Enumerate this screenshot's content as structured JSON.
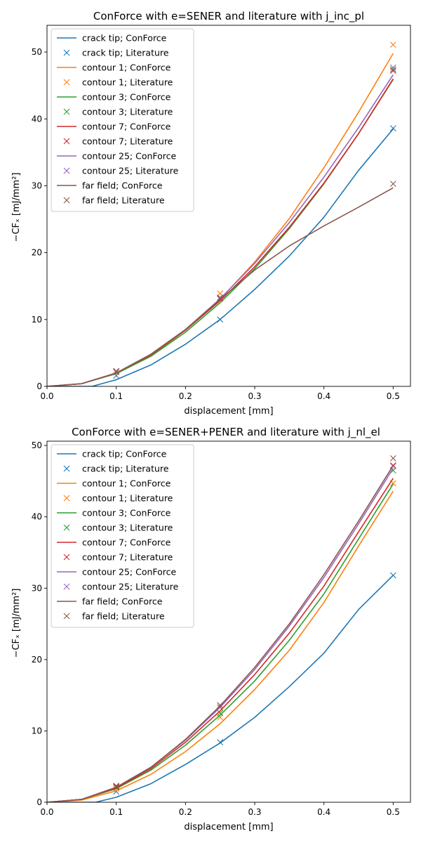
{
  "chart_data": [
    {
      "type": "line",
      "title": "ConForce with e=SENER and literature with j_inc_pl",
      "xlabel": "displacement [mm]",
      "ylabel": "−CFₓ [mJ/mm²]",
      "xlim": [
        0.0,
        0.525
      ],
      "ylim": [
        0,
        54
      ],
      "xticks": [
        "0.0",
        "0.1",
        "0.2",
        "0.3",
        "0.4",
        "0.5"
      ],
      "xtick_values": [
        0.0,
        0.1,
        0.2,
        0.3,
        0.4,
        0.5
      ],
      "yticks": [
        "0",
        "10",
        "20",
        "30",
        "40",
        "50"
      ],
      "ytick_values": [
        0,
        10,
        20,
        30,
        40,
        50
      ],
      "grid": false,
      "legend_position": "top-left",
      "series": [
        {
          "name": "crack tip; ConForce",
          "kind": "line",
          "color": "#1f77b4",
          "x": [
            0.0,
            0.065,
            0.1,
            0.15,
            0.2,
            0.25,
            0.3,
            0.35,
            0.4,
            0.45,
            0.5
          ],
          "y": [
            0.0,
            0.0,
            1.0,
            3.2,
            6.3,
            10.0,
            14.5,
            19.5,
            25.3,
            32.3,
            38.5
          ]
        },
        {
          "name": "crack tip; Literature",
          "kind": "marker",
          "color": "#1f77b4",
          "x": [
            0.1,
            0.25,
            0.5
          ],
          "y": [
            1.6,
            10.0,
            38.6
          ]
        },
        {
          "name": "contour 1; ConForce",
          "kind": "line",
          "color": "#ff7f0e",
          "x": [
            0.0,
            0.05,
            0.1,
            0.15,
            0.2,
            0.25,
            0.3,
            0.35,
            0.4,
            0.45,
            0.5
          ],
          "y": [
            0.0,
            0.4,
            1.9,
            4.6,
            8.4,
            13.0,
            18.6,
            25.1,
            32.7,
            41.0,
            49.8
          ]
        },
        {
          "name": "contour 1; Literature",
          "kind": "marker",
          "color": "#ff7f0e",
          "x": [
            0.1,
            0.25,
            0.5
          ],
          "y": [
            2.1,
            13.9,
            51.1
          ]
        },
        {
          "name": "contour 3; ConForce",
          "kind": "line",
          "color": "#2ca02c",
          "x": [
            0.0,
            0.05,
            0.1,
            0.15,
            0.2,
            0.25,
            0.3,
            0.35,
            0.4,
            0.45,
            0.5
          ],
          "y": [
            0.0,
            0.4,
            1.9,
            4.5,
            8.1,
            12.5,
            17.6,
            23.6,
            30.3,
            37.8,
            45.9
          ]
        },
        {
          "name": "contour 3; Literature",
          "kind": "marker",
          "color": "#2ca02c",
          "x": [
            0.1,
            0.25,
            0.5
          ],
          "y": [
            2.2,
            13.2,
            47.4
          ]
        },
        {
          "name": "contour 7; ConForce",
          "kind": "line",
          "color": "#d62728",
          "x": [
            0.0,
            0.05,
            0.1,
            0.15,
            0.2,
            0.25,
            0.3,
            0.35,
            0.4,
            0.45,
            0.5
          ],
          "y": [
            0.0,
            0.4,
            2.0,
            4.7,
            8.4,
            12.8,
            17.9,
            23.8,
            30.4,
            37.8,
            46.0
          ]
        },
        {
          "name": "contour 7; Literature",
          "kind": "marker",
          "color": "#d62728",
          "x": [
            0.1,
            0.25,
            0.5
          ],
          "y": [
            2.2,
            13.1,
            47.2
          ]
        },
        {
          "name": "contour 25; ConForce",
          "kind": "line",
          "color": "#9467bd",
          "x": [
            0.0,
            0.05,
            0.1,
            0.15,
            0.2,
            0.25,
            0.3,
            0.35,
            0.4,
            0.45,
            0.5
          ],
          "y": [
            0.0,
            0.4,
            2.0,
            4.8,
            8.5,
            13.1,
            18.4,
            24.5,
            31.3,
            38.7,
            46.6
          ]
        },
        {
          "name": "contour 25; Literature",
          "kind": "marker",
          "color": "#9467bd",
          "x": [
            0.1,
            0.25,
            0.5
          ],
          "y": [
            2.2,
            13.3,
            47.7
          ]
        },
        {
          "name": "far field; ConForce",
          "kind": "line",
          "color": "#8c564b",
          "x": [
            0.0,
            0.05,
            0.1,
            0.15,
            0.2,
            0.25,
            0.3,
            0.35,
            0.4,
            0.45,
            0.5
          ],
          "y": [
            0.0,
            0.4,
            2.0,
            4.8,
            8.5,
            13.0,
            17.4,
            21.0,
            24.0,
            26.8,
            29.7
          ]
        },
        {
          "name": "far field; Literature",
          "kind": "marker",
          "color": "#8c564b",
          "x": [
            0.1,
            0.25,
            0.5
          ],
          "y": [
            2.3,
            13.2,
            30.3
          ]
        }
      ]
    },
    {
      "type": "line",
      "title": "ConForce with e=SENER+PENER and literature with j_nl_el",
      "xlabel": "displacement [mm]",
      "ylabel": "−CFₓ [mJ/mm²]",
      "xlim": [
        0.0,
        0.525
      ],
      "ylim": [
        0,
        50.6
      ],
      "xticks": [
        "0.0",
        "0.1",
        "0.2",
        "0.3",
        "0.4",
        "0.5"
      ],
      "xtick_values": [
        0.0,
        0.1,
        0.2,
        0.3,
        0.4,
        0.5
      ],
      "yticks": [
        "0",
        "10",
        "20",
        "30",
        "40",
        "50"
      ],
      "ytick_values": [
        0,
        10,
        20,
        30,
        40,
        50
      ],
      "grid": false,
      "legend_position": "top-left",
      "series": [
        {
          "name": "crack tip; ConForce",
          "kind": "line",
          "color": "#1f77b4",
          "x": [
            0.0,
            0.07,
            0.1,
            0.15,
            0.2,
            0.25,
            0.3,
            0.35,
            0.4,
            0.45,
            0.5
          ],
          "y": [
            0.0,
            0.0,
            0.7,
            2.6,
            5.3,
            8.3,
            11.9,
            16.2,
            20.9,
            27.0,
            31.8
          ]
        },
        {
          "name": "crack tip; Literature",
          "kind": "marker",
          "color": "#1f77b4",
          "x": [
            0.1,
            0.25,
            0.5
          ],
          "y": [
            1.5,
            8.4,
            31.8
          ]
        },
        {
          "name": "contour 1; ConForce",
          "kind": "line",
          "color": "#ff7f0e",
          "x": [
            0.0,
            0.05,
            0.1,
            0.15,
            0.2,
            0.25,
            0.3,
            0.35,
            0.4,
            0.45,
            0.5
          ],
          "y": [
            0.0,
            0.3,
            1.6,
            3.9,
            7.1,
            11.0,
            15.8,
            21.3,
            28.0,
            35.9,
            43.6
          ]
        },
        {
          "name": "contour 1; Literature",
          "kind": "marker",
          "color": "#ff7f0e",
          "x": [
            0.1,
            0.25,
            0.5
          ],
          "y": [
            1.9,
            11.9,
            44.7
          ]
        },
        {
          "name": "contour 3; ConForce",
          "kind": "line",
          "color": "#2ca02c",
          "x": [
            0.0,
            0.05,
            0.1,
            0.15,
            0.2,
            0.25,
            0.3,
            0.35,
            0.4,
            0.45,
            0.5
          ],
          "y": [
            0.0,
            0.4,
            1.9,
            4.5,
            8.0,
            12.2,
            17.0,
            22.7,
            29.2,
            36.9,
            44.6
          ]
        },
        {
          "name": "contour 3; Literature",
          "kind": "marker",
          "color": "#2ca02c",
          "x": [
            0.1,
            0.25,
            0.5
          ],
          "y": [
            2.1,
            12.5,
            46.5
          ]
        },
        {
          "name": "contour 7; ConForce",
          "kind": "line",
          "color": "#d62728",
          "x": [
            0.0,
            0.05,
            0.1,
            0.15,
            0.2,
            0.25,
            0.3,
            0.35,
            0.4,
            0.45,
            0.5
          ],
          "y": [
            0.0,
            0.4,
            2.0,
            4.7,
            8.4,
            12.8,
            17.9,
            23.7,
            30.3,
            37.9,
            45.4
          ]
        },
        {
          "name": "contour 7; Literature",
          "kind": "marker",
          "color": "#d62728",
          "x": [
            0.1,
            0.25,
            0.5
          ],
          "y": [
            2.2,
            13.3,
            47.2
          ]
        },
        {
          "name": "contour 25; ConForce",
          "kind": "line",
          "color": "#9467bd",
          "x": [
            0.0,
            0.05,
            0.1,
            0.15,
            0.2,
            0.25,
            0.3,
            0.35,
            0.4,
            0.45,
            0.5
          ],
          "y": [
            0.0,
            0.4,
            2.1,
            4.9,
            8.7,
            13.3,
            18.6,
            24.7,
            31.5,
            39.0,
            46.8
          ]
        },
        {
          "name": "contour 25; Literature",
          "kind": "marker",
          "color": "#9467bd",
          "x": [
            0.1,
            0.25,
            0.5
          ],
          "y": [
            2.3,
            13.6,
            47.1
          ]
        },
        {
          "name": "far field; ConForce",
          "kind": "line",
          "color": "#8c564b",
          "x": [
            0.0,
            0.05,
            0.1,
            0.15,
            0.2,
            0.25,
            0.3,
            0.35,
            0.4,
            0.45,
            0.5
          ],
          "y": [
            0.0,
            0.4,
            2.1,
            4.9,
            8.8,
            13.5,
            18.9,
            25.0,
            31.9,
            39.4,
            47.2
          ]
        },
        {
          "name": "far field; Literature",
          "kind": "marker",
          "color": "#8c564b",
          "x": [
            0.1,
            0.25,
            0.5
          ],
          "y": [
            2.3,
            13.6,
            48.2
          ]
        }
      ]
    }
  ]
}
